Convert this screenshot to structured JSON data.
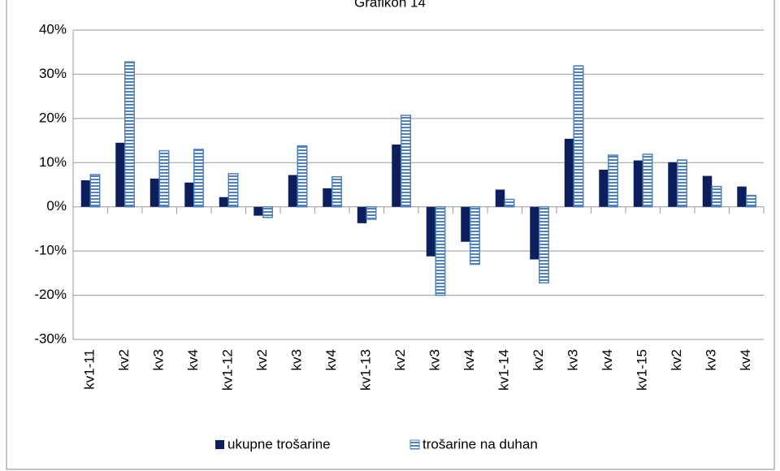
{
  "chart_data": {
    "type": "bar",
    "title": "Grafikon 14",
    "categories": [
      "kv1-11",
      "kv2",
      "kv3",
      "kv4",
      "kv1-12",
      "kv2",
      "kv3",
      "kv4",
      "kv1-13",
      "kv2",
      "kv3",
      "kv4",
      "kv1-14",
      "kv2",
      "kv3",
      "kv4",
      "kv1-15",
      "kv2",
      "kv3",
      "kv4"
    ],
    "series": [
      {
        "name": "ukupne trošarine",
        "color": "#0c1f5c",
        "values": [
          6.0,
          14.5,
          6.4,
          5.5,
          2.2,
          -2.0,
          7.2,
          4.2,
          -3.7,
          14.1,
          -11.2,
          -7.9,
          3.9,
          -11.9,
          15.4,
          8.4,
          10.5,
          10.1,
          7.0,
          4.6
        ]
      },
      {
        "name": "trošarine na duhan",
        "color": "#4f81bd",
        "values": [
          7.3,
          32.8,
          12.7,
          13.0,
          7.5,
          -2.4,
          13.8,
          6.8,
          -2.8,
          20.7,
          -20.0,
          -13.0,
          1.7,
          -17.2,
          31.9,
          11.7,
          11.9,
          10.6,
          4.6,
          2.6
        ]
      }
    ],
    "ylim": [
      -30,
      40
    ],
    "yticks": [
      {
        "value": -30,
        "label": "-30%"
      },
      {
        "value": -20,
        "label": "-20%"
      },
      {
        "value": -10,
        "label": "-10%"
      },
      {
        "value": 0,
        "label": "0%"
      },
      {
        "value": 10,
        "label": "10%"
      },
      {
        "value": 20,
        "label": "20%"
      },
      {
        "value": 30,
        "label": "30%"
      },
      {
        "value": 40,
        "label": "40%"
      }
    ],
    "grid": true,
    "legend": "bottom"
  }
}
